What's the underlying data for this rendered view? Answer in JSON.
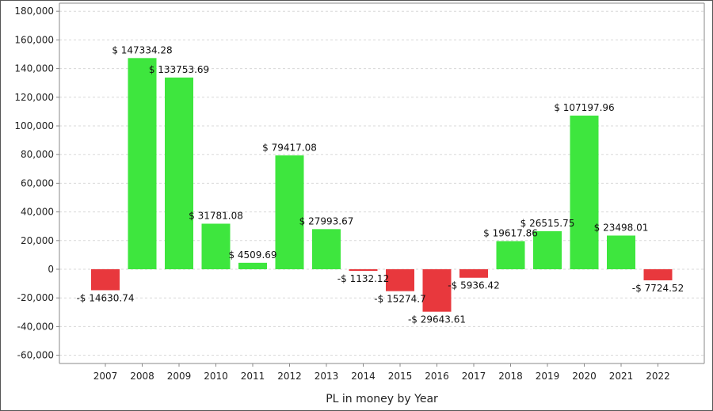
{
  "chart_data": {
    "type": "bar",
    "xlabel": "PL in money by Year",
    "ylabel": "",
    "ylim": [
      -65000,
      185000
    ],
    "yticks": [
      -60000,
      -40000,
      -20000,
      0,
      20000,
      40000,
      60000,
      80000,
      100000,
      120000,
      140000,
      160000,
      180000
    ],
    "ytick_labels": [
      "-60,000",
      "-40,000",
      "-20,000",
      "0",
      "20,000",
      "40,000",
      "60,000",
      "80,000",
      "100,000",
      "120,000",
      "140,000",
      "160,000",
      "180,000"
    ],
    "grid": true,
    "legend": "none",
    "categories": [
      "2007",
      "2008",
      "2009",
      "2010",
      "2011",
      "2012",
      "2013",
      "2014",
      "2015",
      "2016",
      "2017",
      "2018",
      "2019",
      "2020",
      "2021",
      "2022"
    ],
    "values": [
      -14630.74,
      147334.28,
      133753.69,
      31781.08,
      4509.69,
      79417.08,
      27993.67,
      -1132.12,
      -15274.7,
      -29643.61,
      -5936.42,
      19617.86,
      26515.75,
      107197.96,
      23498.01,
      -7724.52
    ],
    "data_labels": [
      "-$ 14630.74",
      "$ 147334.28",
      "$ 133753.69",
      "$ 31781.08",
      "$ 4509.69",
      "$ 79417.08",
      "$ 27993.67",
      "-$ 1132.12",
      "-$ 15274.7",
      "-$ 29643.61",
      "-$ 5936.42",
      "$ 19617.86",
      "$ 26515.75",
      "$ 107197.96",
      "$ 23498.01",
      "-$ 7724.52"
    ],
    "colors": {
      "positive": "#3ee63e",
      "negative": "#e8383d",
      "grid": "#d8d8d8",
      "axis": "#888888"
    }
  }
}
